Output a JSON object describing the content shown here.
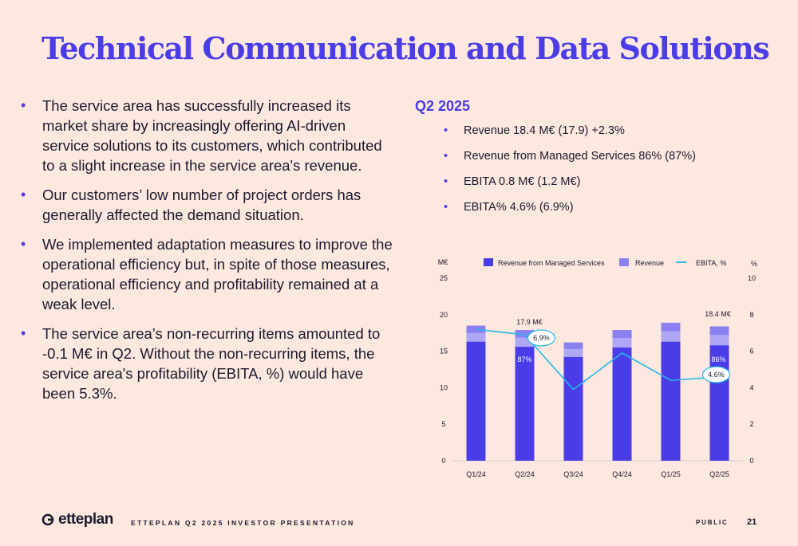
{
  "title": "Technical Communication and Data Solutions",
  "left_bullets": [
    "The service area has successfully increased its market share by increasingly offering AI-driven service solutions to its customers, which contributed to a slight increase in the service area's revenue.",
    "Our customers’ low number of project orders has generally affected the demand situation.",
    "We implemented adaptation measures to improve the operational efficiency but, in spite of those measures, operational efficiency and profitability remained at a weak level.",
    "The service area’s non-recurring items amounted to -0.1 M€ in Q2. Without the non-recurring items, the service area's profitability (EBITA, %) would have been 5.3%."
  ],
  "quarter_title": "Q2 2025",
  "right_bullets": [
    "Revenue 18.4 M€ (17.9) +2.3%",
    "Revenue from Managed Services 86% (87%)",
    "EBITA 0.8 M€ (1.2 M€)",
    "EBITA% 4.6% (6.9%)"
  ],
  "chart_data": {
    "type": "bar",
    "categories": [
      "Q1/24",
      "Q2/24",
      "Q3/24",
      "Q4/24",
      "Q1/25",
      "Q2/25"
    ],
    "series": [
      {
        "name": "Revenue from Managed Services",
        "values": [
          16.3,
          15.6,
          14.2,
          15.5,
          16.3,
          15.8
        ],
        "color": "#4a3ce6"
      },
      {
        "name": "Revenue",
        "values": [
          18.5,
          17.9,
          16.2,
          17.9,
          18.9,
          18.4
        ],
        "color": "#8a80f0"
      },
      {
        "name": "EBITA, %",
        "type": "line",
        "axis": "right",
        "values": [
          7.2,
          6.9,
          3.9,
          5.9,
          4.4,
          4.6
        ],
        "color": "#29b6e8"
      }
    ],
    "y_left": {
      "label": "M€",
      "min": 0,
      "max": 25,
      "ticks": [
        0,
        5,
        10,
        15,
        20,
        25
      ]
    },
    "y_right": {
      "label": "%",
      "min": 0,
      "max": 10,
      "ticks": [
        0,
        2,
        4,
        6,
        8,
        10
      ]
    },
    "annotations": {
      "revenue_q2_24": "17.9 M€",
      "revenue_q2_25": "18.4 M€",
      "share_q2_24": "87%",
      "share_q2_25": "86%",
      "ebita_q2_24": "6.9%",
      "ebita_q2_25": "4.6%"
    },
    "legend_position": "top"
  },
  "footer": {
    "logo_text": "etteplan",
    "presentation": "ETTEPLAN Q2 2025 INVESTOR PRESENTATION",
    "classification": "PUBLIC",
    "page": "21"
  },
  "colors": {
    "background": "#fde8e0",
    "accent": "#4a3ce6",
    "line": "#29b6e8"
  }
}
